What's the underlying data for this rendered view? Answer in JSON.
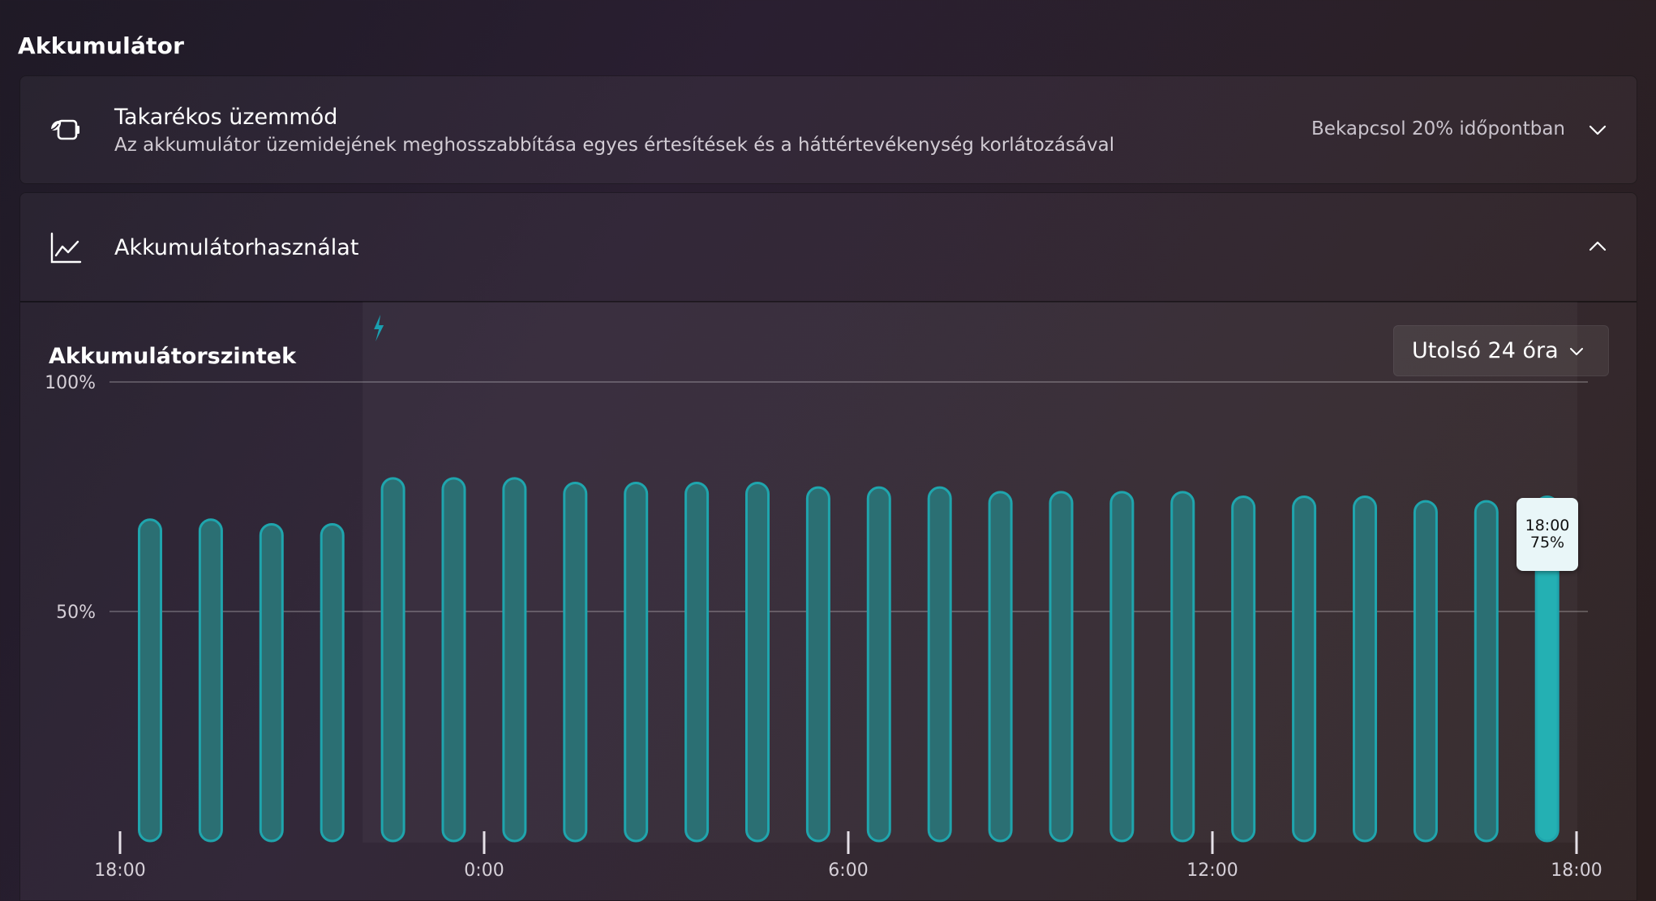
{
  "section_title": "Akkumulátor",
  "battery_saver": {
    "icon": "battery-saver-icon",
    "title": "Takarékos üzemmód",
    "subtitle": "Az akkumulátor üzemidejének meghosszabbítása egyes értesítések és a háttértevékenység korlátozásával",
    "status": "Bekapcsol 20% időpontban"
  },
  "battery_usage": {
    "icon": "chart-line-icon",
    "title": "Akkumulátorhasználat",
    "expanded": true
  },
  "levels": {
    "title": "Akkumulátorszintek",
    "range_label": "Utolsó 24 óra",
    "tooltip_time": "18:00",
    "tooltip_value": "75%"
  },
  "colors": {
    "bar_fill": "#2b6f73",
    "bar_stroke": "#1fa5ad",
    "bar_selected": "#24b0b3",
    "charging_icon": "#1a9fb0"
  },
  "chart_data": {
    "type": "bar",
    "y_ticks": [
      "100%",
      "50%"
    ],
    "x_tick_labels": [
      "18:00",
      "0:00",
      "6:00",
      "12:00",
      "18:00"
    ],
    "ylim": [
      0,
      100
    ],
    "charging_from_index": 4,
    "selected_index": 23,
    "values": [
      70,
      70,
      69,
      69,
      79,
      79,
      79,
      78,
      78,
      78,
      78,
      77,
      77,
      77,
      76,
      76,
      76,
      76,
      75,
      75,
      75,
      74,
      74,
      75
    ]
  }
}
